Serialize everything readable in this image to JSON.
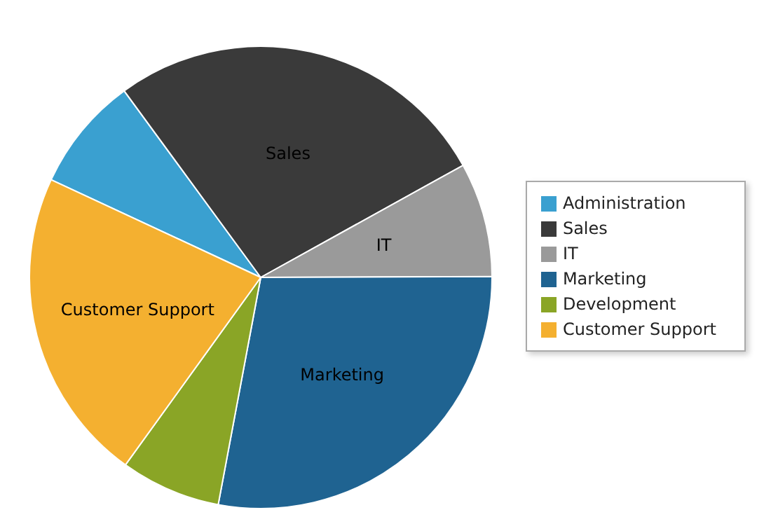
{
  "chart_data": {
    "type": "pie",
    "categories": [
      "Administration",
      "Sales",
      "IT",
      "Marketing",
      "Development",
      "Customer Support"
    ],
    "values": [
      8,
      27,
      8,
      28,
      7,
      22
    ],
    "colors": [
      "#3aa0d0",
      "#3a3a3a",
      "#9a9a9a",
      "#1f6391",
      "#8aa526",
      "#f4b030"
    ],
    "legend": "right",
    "annotations": [
      {
        "text": "Sales",
        "x": "Sales"
      },
      {
        "text": "IT",
        "x": "IT"
      },
      {
        "text": "Marketing",
        "x": "Marketing"
      },
      {
        "text": "Customer Support",
        "x": "Customer Support"
      }
    ]
  }
}
